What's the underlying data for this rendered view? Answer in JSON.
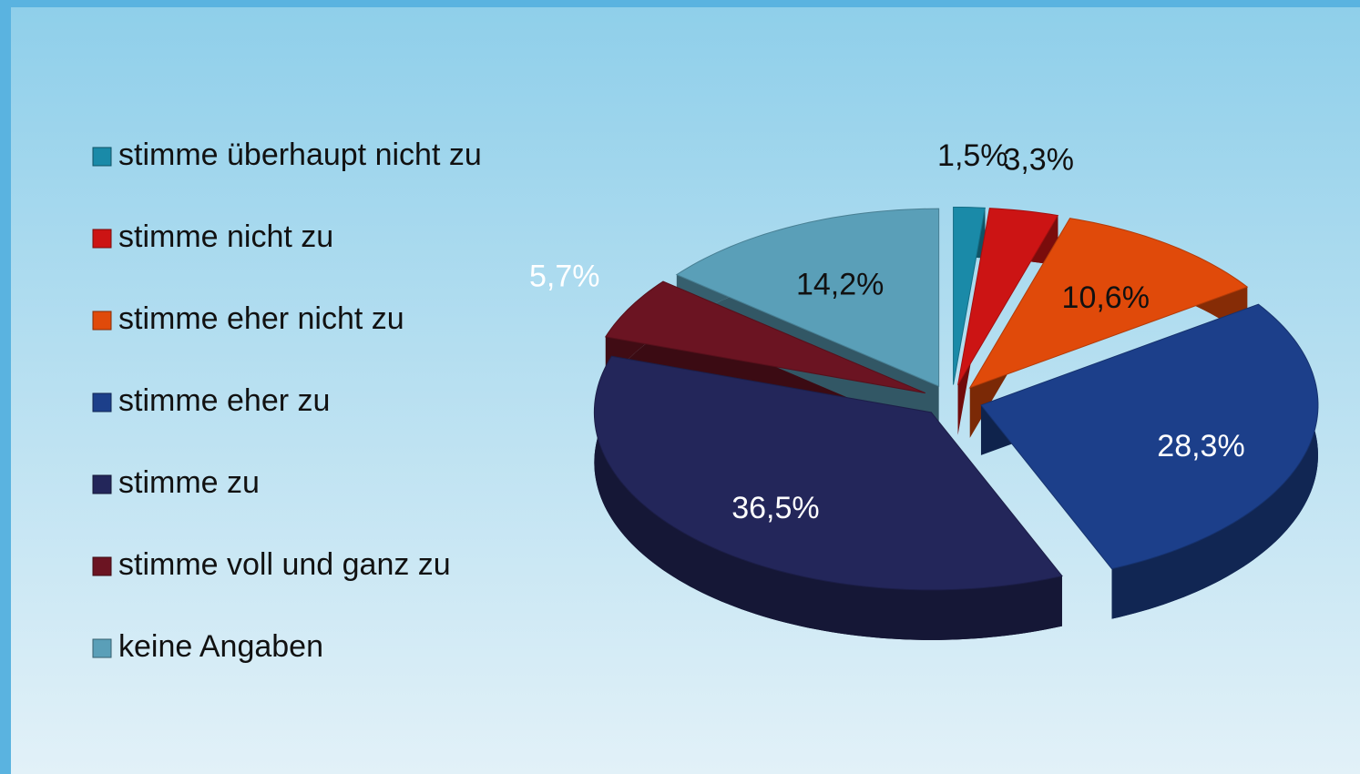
{
  "chart_data": {
    "type": "pie",
    "categories": [
      "stimme überhaupt nicht zu",
      "stimme nicht zu",
      "stimme eher nicht zu",
      "stimme eher zu",
      "stimme zu",
      "stimme voll und ganz zu",
      "keine Angaben"
    ],
    "values": [
      1.5,
      3.3,
      10.6,
      28.3,
      36.5,
      5.7,
      14.2
    ],
    "value_labels": [
      "1,5%",
      "3,3%",
      "10,6%",
      "28,3%",
      "36,5%",
      "5,7%",
      "14,2%"
    ],
    "colors": [
      "#1a8aa8",
      "#cc1414",
      "#e04a0a",
      "#1c3f8a",
      "#23265a",
      "#6b1422",
      "#5a9fb8"
    ],
    "legend": "left"
  }
}
